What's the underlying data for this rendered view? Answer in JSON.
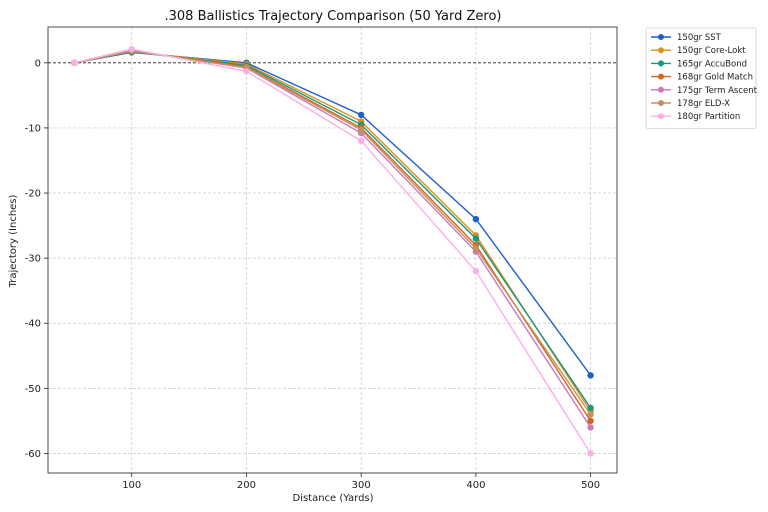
{
  "chart_data": {
    "type": "line",
    "title": ".308 Ballistics Trajectory Comparison (50 Yard Zero)",
    "xlabel": "Distance (Yards)",
    "ylabel": "Trajectory (Inches)",
    "x": [
      50,
      100,
      200,
      300,
      400,
      500
    ],
    "xlim": [
      27,
      523
    ],
    "ylim": [
      -63,
      5.5
    ],
    "xticks": [
      100,
      200,
      300,
      400,
      500
    ],
    "yticks": [
      0,
      -10,
      -20,
      -30,
      -40,
      -50,
      -60
    ],
    "grid": true,
    "zero_line": true,
    "legend_position": "outside-top-right",
    "series": [
      {
        "name": "150gr SST",
        "color": "#1f5fcf",
        "values": [
          0,
          1.6,
          0,
          -8.0,
          -24.0,
          -48.0
        ]
      },
      {
        "name": "150gr Core-Lokt",
        "color": "#e0901a",
        "values": [
          0,
          1.7,
          -0.2,
          -9.0,
          -26.5,
          -53.5
        ]
      },
      {
        "name": "165gr AccuBond",
        "color": "#139b7b",
        "values": [
          0,
          1.7,
          -0.4,
          -9.5,
          -27.0,
          -53.0
        ]
      },
      {
        "name": "168gr Gold Match",
        "color": "#d2661c",
        "values": [
          0,
          1.8,
          -0.6,
          -10.0,
          -28.0,
          -55.0
        ]
      },
      {
        "name": "175gr Term Ascent",
        "color": "#cc78bc",
        "values": [
          0,
          1.9,
          -0.8,
          -10.8,
          -29.0,
          -56.0
        ]
      },
      {
        "name": "178gr ELD-X",
        "color": "#c3915f",
        "values": [
          0,
          1.8,
          -0.7,
          -10.3,
          -28.5,
          -54.0
        ]
      },
      {
        "name": "180gr Partition",
        "color": "#fbafe4",
        "values": [
          0,
          2.1,
          -1.3,
          -12.0,
          -32.0,
          -60.0
        ]
      }
    ]
  }
}
